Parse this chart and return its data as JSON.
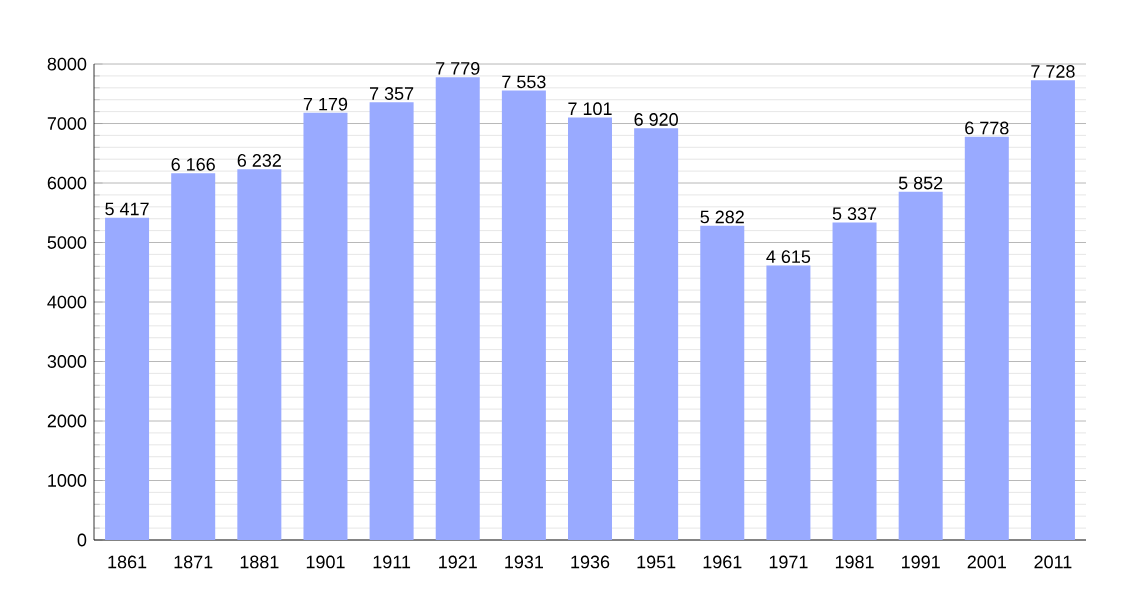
{
  "chart_data": {
    "type": "bar",
    "categories": [
      "1861",
      "1871",
      "1881",
      "1901",
      "1911",
      "1921",
      "1931",
      "1936",
      "1951",
      "1961",
      "1971",
      "1981",
      "1991",
      "2001",
      "2011"
    ],
    "values": [
      5417,
      6166,
      6232,
      7179,
      7357,
      7779,
      7553,
      7101,
      6920,
      5282,
      4615,
      5337,
      5852,
      6778,
      7728
    ],
    "value_labels": [
      "5 417",
      "6 166",
      "6 232",
      "7 179",
      "7 357",
      "7 779",
      "7 553",
      "7 101",
      "6 920",
      "5 282",
      "4 615",
      "5 337",
      "5 852",
      "6 778",
      "7 728"
    ],
    "color": "#99aaff",
    "ylim": [
      0,
      8000
    ],
    "yticks": [
      0,
      1000,
      2000,
      3000,
      4000,
      5000,
      6000,
      7000,
      8000
    ],
    "grid": "y"
  }
}
